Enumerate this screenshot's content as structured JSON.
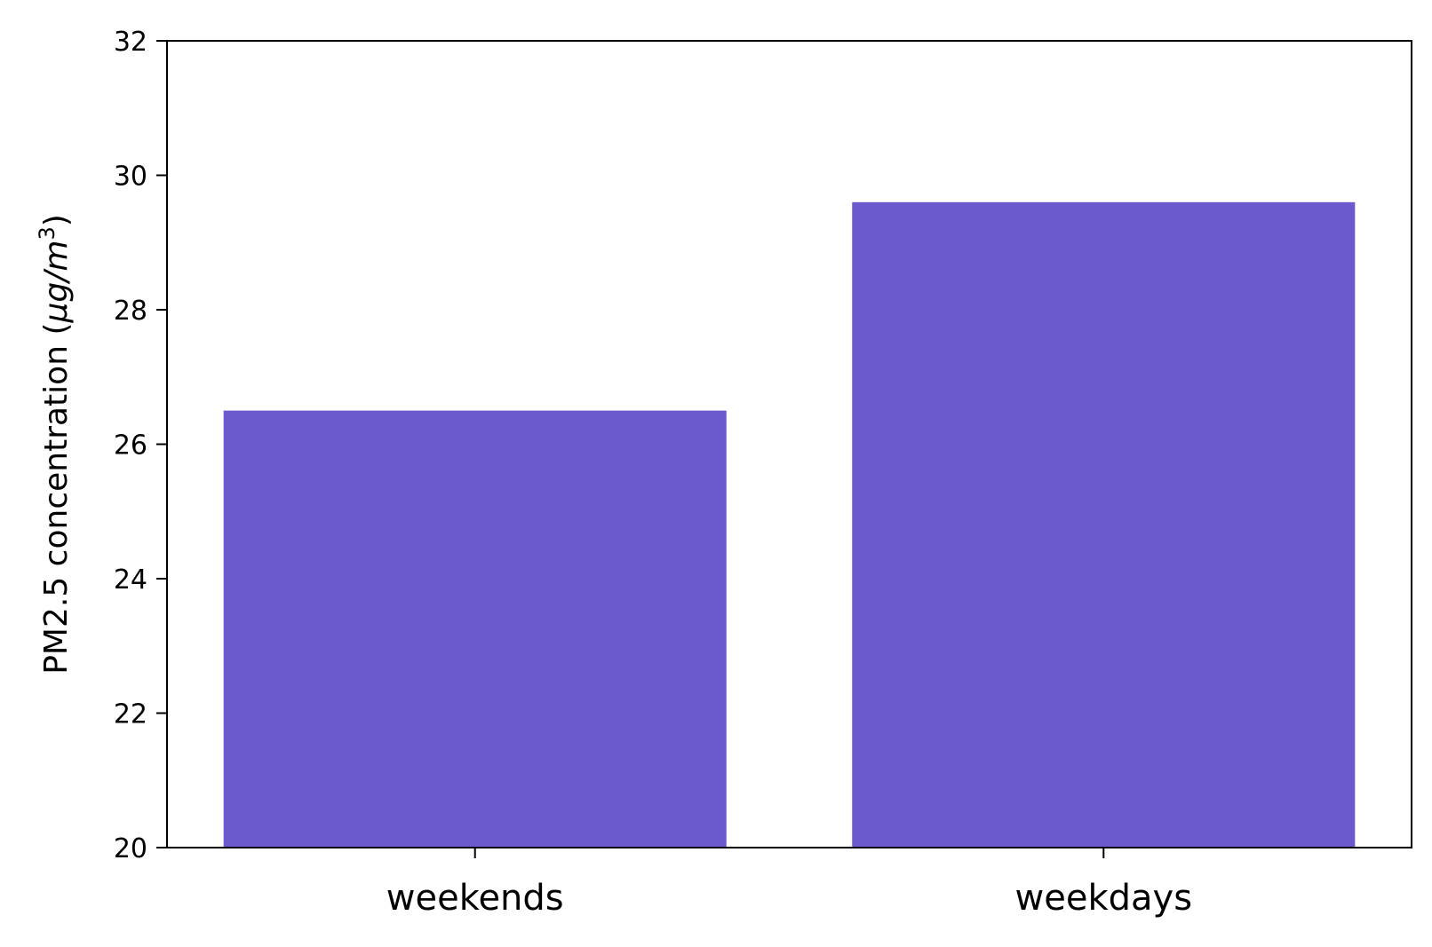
{
  "chart_data": {
    "type": "bar",
    "categories": [
      "weekends",
      "weekdays"
    ],
    "values": [
      26.5,
      29.6
    ],
    "title": "",
    "xlabel": "",
    "ylabel": {
      "prefix": "PM2.5 concentration (",
      "unit_italic": "μg/m",
      "superscript": "3",
      "suffix": ")"
    },
    "ylim": [
      20,
      32
    ],
    "yticks": [
      20,
      22,
      24,
      26,
      28,
      30,
      32
    ],
    "grid": false,
    "legend": "none",
    "bar_color": "#6a5acd"
  }
}
